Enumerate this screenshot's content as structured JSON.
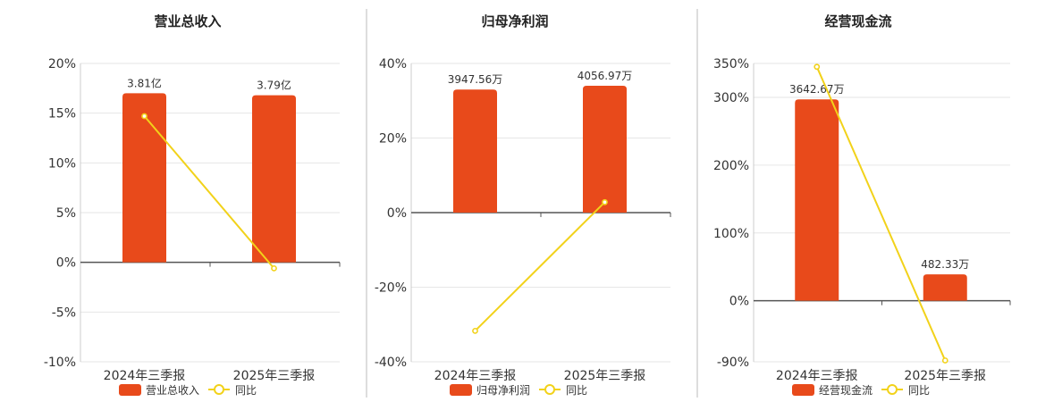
{
  "colors": {
    "bar": "#e84a1b",
    "line": "#f2d21a",
    "grid": "#e6e6e6",
    "axis": "#555555",
    "divider": "#bbbbbb",
    "text": "#333333"
  },
  "chart_data": [
    {
      "type": "bar",
      "title": "营业总收入",
      "categories": [
        "2024年三季报",
        "2025年三季报"
      ],
      "series": [
        {
          "name": "营业总收入",
          "type": "bar",
          "value_labels": [
            "3.81亿",
            "3.79亿"
          ],
          "values_pct": [
            17.0,
            16.8
          ]
        },
        {
          "name": "同比",
          "type": "line",
          "values": [
            14.7,
            -0.6
          ]
        }
      ],
      "y_ticks": [
        "20%",
        "15%",
        "10%",
        "5%",
        "0%",
        "-5%",
        "-10%"
      ],
      "ylim": [
        -10,
        20
      ],
      "grid": true,
      "legend": "bottom"
    },
    {
      "type": "bar",
      "title": "归母净利润",
      "categories": [
        "2024年三季报",
        "2025年三季报"
      ],
      "series": [
        {
          "name": "归母净利润",
          "type": "bar",
          "value_labels": [
            "3947.56万",
            "4056.97万"
          ],
          "values_pct": [
            33.0,
            34.0
          ]
        },
        {
          "name": "同比",
          "type": "line",
          "values": [
            -31.7,
            2.8
          ]
        }
      ],
      "y_ticks": [
        "40%",
        "20%",
        "0%",
        "-20%",
        "-40%"
      ],
      "ylim": [
        -40,
        40
      ],
      "grid": true,
      "legend": "bottom"
    },
    {
      "type": "bar",
      "title": "经营现金流",
      "categories": [
        "2024年三季报",
        "2025年三季报"
      ],
      "series": [
        {
          "name": "经营现金流",
          "type": "bar",
          "value_labels": [
            "3642.67万",
            "482.33万"
          ],
          "values_pct": [
            297,
            39
          ]
        },
        {
          "name": "同比",
          "type": "line",
          "values": [
            345,
            -88
          ]
        }
      ],
      "y_ticks": [
        "350%",
        "300%",
        "200%",
        "100%",
        "0%",
        "-90%"
      ],
      "y_tick_values": [
        350,
        300,
        200,
        100,
        0,
        -90
      ],
      "ylim": [
        -90,
        350
      ],
      "grid": true,
      "legend": "bottom"
    }
  ]
}
